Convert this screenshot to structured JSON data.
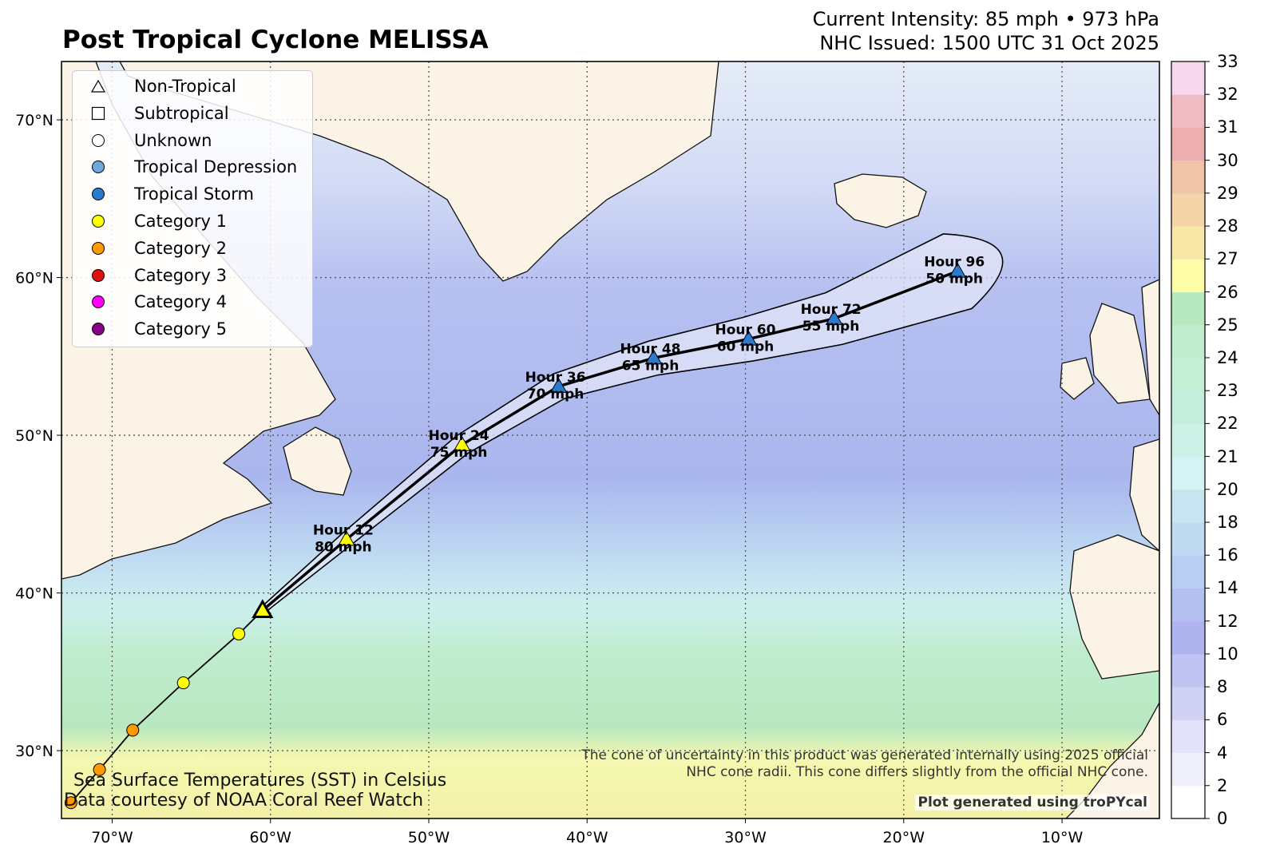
{
  "title": "Post Tropical Cyclone MELISSA",
  "header": {
    "intensity": "Current Intensity: 85 mph • 973 hPa",
    "issued": "NHC Issued: 1500 UTC 31 Oct 2025"
  },
  "map": {
    "lon_range": [
      -73.2,
      -3.85
    ],
    "lat_range": [
      25.7,
      73.7
    ],
    "projection": "plate-carree",
    "gridlines": true,
    "lon_ticks": [
      "70°W",
      "60°W",
      "50°W",
      "40°W",
      "30°W",
      "20°W",
      "10°W"
    ],
    "lat_ticks": [
      "30°N",
      "40°N",
      "50°N",
      "60°N",
      "70°N"
    ]
  },
  "legend": {
    "items": [
      {
        "label": "Non-Tropical",
        "symbol": "triangle",
        "color": "#ffffff"
      },
      {
        "label": "Subtropical",
        "symbol": "square",
        "color": "#ffffff"
      },
      {
        "label": "Unknown",
        "symbol": "circle",
        "color": "#ffffff"
      },
      {
        "label": "Tropical Depression",
        "symbol": "circle",
        "color": "#6fa8dc"
      },
      {
        "label": "Tropical Storm",
        "symbol": "circle",
        "color": "#2a7bd0"
      },
      {
        "label": "Category 1",
        "symbol": "circle",
        "color": "#ffff00"
      },
      {
        "label": "Category 2",
        "symbol": "circle",
        "color": "#ff9900"
      },
      {
        "label": "Category 3",
        "symbol": "circle",
        "color": "#e01010"
      },
      {
        "label": "Category 4",
        "symbol": "circle",
        "color": "#ff00ff"
      },
      {
        "label": "Category 5",
        "symbol": "circle",
        "color": "#8b008b"
      }
    ]
  },
  "track": {
    "past": [
      {
        "lon": -72.6,
        "lat": 26.7,
        "color": "#ff9900"
      },
      {
        "lon": -70.8,
        "lat": 28.8,
        "color": "#ff9900"
      },
      {
        "lon": -68.7,
        "lat": 31.3,
        "color": "#ff9900"
      },
      {
        "lon": -65.5,
        "lat": 34.3,
        "color": "#ffff00"
      },
      {
        "lon": -62.0,
        "lat": 37.4,
        "color": "#ffff00"
      }
    ],
    "current": {
      "lon": -60.5,
      "lat": 38.9,
      "color": "#ffff00"
    },
    "forecast": [
      {
        "hour": "Hour 12",
        "wind": "80 mph",
        "lon": -55.2,
        "lat": 43.4,
        "color": "#ffff00"
      },
      {
        "hour": "Hour 24",
        "wind": "75 mph",
        "lon": -47.9,
        "lat": 49.4,
        "color": "#ffff00"
      },
      {
        "hour": "Hour 36",
        "wind": "70 mph",
        "lon": -41.8,
        "lat": 53.1,
        "color": "#2a7bd0"
      },
      {
        "hour": "Hour 48",
        "wind": "65 mph",
        "lon": -35.8,
        "lat": 54.9,
        "color": "#2a7bd0"
      },
      {
        "hour": "Hour 60",
        "wind": "60 mph",
        "lon": -29.8,
        "lat": 56.1,
        "color": "#2a7bd0"
      },
      {
        "hour": "Hour 72",
        "wind": "55 mph",
        "lon": -24.4,
        "lat": 57.4,
        "color": "#2a7bd0"
      },
      {
        "hour": "Hour 96",
        "wind": "50 mph",
        "lon": -16.6,
        "lat": 60.4,
        "color": "#2a7bd0"
      }
    ]
  },
  "colorbar": {
    "levels": [
      0,
      2,
      4,
      6,
      8,
      10,
      12,
      14,
      16,
      18,
      20,
      21,
      22,
      23,
      24,
      25,
      26,
      27,
      28,
      29,
      30,
      31,
      32,
      33
    ],
    "colors": [
      "#ffffff",
      "#f0f0fc",
      "#e2e2f8",
      "#d0d2f4",
      "#c0c4f2",
      "#b0b4ee",
      "#b4c0f0",
      "#b8cef2",
      "#c0daf2",
      "#c8e4f0",
      "#d4f4f4",
      "#ccf2e8",
      "#c6eedd",
      "#c4eed6",
      "#c0ecce",
      "#b8e8c0",
      "#fefea8",
      "#f8e8a8",
      "#f4d4a8",
      "#f0c4a8",
      "#ecaeae",
      "#f0bcc4",
      "#f8d8ec"
    ]
  },
  "notes": {
    "sst_line1": "Sea Surface Temperatures (SST) in Celsius",
    "sst_line2": "Data courtesy of NOAA Coral Reef Watch",
    "cone_line1": "The cone of uncertainty in this product was generated internally using 2025 official",
    "cone_line2": "NHC cone radii. This cone differs slightly from the official NHC cone.",
    "credit": "Plot generated using troPYcal"
  }
}
